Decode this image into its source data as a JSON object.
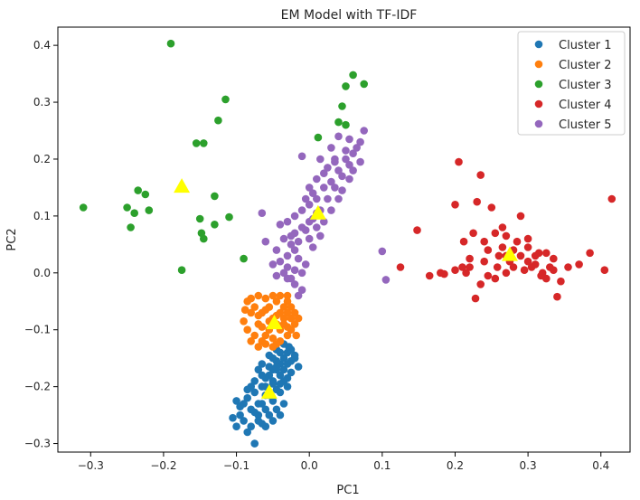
{
  "chart_data": {
    "type": "scatter",
    "title": "EM Model with TF-IDF",
    "xlabel": "PC1",
    "ylabel": "PC2",
    "xlim": [
      -0.345,
      0.44
    ],
    "ylim": [
      -0.315,
      0.432
    ],
    "xticks": [
      -0.3,
      -0.2,
      -0.1,
      0.0,
      0.1,
      0.2,
      0.3,
      0.4
    ],
    "xtick_labels": [
      "−0.3",
      "−0.2",
      "−0.1",
      "0.0",
      "0.1",
      "0.2",
      "0.3",
      "0.4"
    ],
    "yticks": [
      -0.3,
      -0.2,
      -0.1,
      0.0,
      0.1,
      0.2,
      0.3,
      0.4
    ],
    "ytick_labels": [
      "−0.3",
      "−0.2",
      "−0.1",
      "0.0",
      "0.1",
      "0.2",
      "0.3",
      "0.4"
    ],
    "legend": "top-right",
    "grid": false,
    "series": [
      {
        "name": "Cluster 1",
        "color": "#1f77b4",
        "points": [
          [
            -0.055,
            -0.215
          ],
          [
            -0.06,
            -0.2
          ],
          [
            -0.05,
            -0.19
          ],
          [
            -0.045,
            -0.17
          ],
          [
            -0.04,
            -0.16
          ],
          [
            -0.035,
            -0.15
          ],
          [
            -0.03,
            -0.14
          ],
          [
            -0.025,
            -0.135
          ],
          [
            -0.065,
            -0.23
          ],
          [
            -0.07,
            -0.25
          ],
          [
            -0.08,
            -0.24
          ],
          [
            -0.085,
            -0.22
          ],
          [
            -0.075,
            -0.21
          ],
          [
            -0.065,
            -0.2
          ],
          [
            -0.055,
            -0.18
          ],
          [
            -0.045,
            -0.155
          ],
          [
            -0.03,
            -0.16
          ],
          [
            -0.02,
            -0.15
          ],
          [
            -0.025,
            -0.175
          ],
          [
            -0.035,
            -0.19
          ],
          [
            -0.045,
            -0.205
          ],
          [
            -0.05,
            -0.225
          ],
          [
            -0.06,
            -0.24
          ],
          [
            -0.07,
            -0.26
          ],
          [
            -0.09,
            -0.26
          ],
          [
            -0.095,
            -0.25
          ],
          [
            -0.1,
            -0.27
          ],
          [
            -0.085,
            -0.28
          ],
          [
            -0.075,
            -0.3
          ],
          [
            -0.06,
            -0.27
          ],
          [
            -0.05,
            -0.26
          ],
          [
            -0.04,
            -0.25
          ],
          [
            -0.035,
            -0.23
          ],
          [
            -0.04,
            -0.21
          ],
          [
            -0.05,
            -0.195
          ],
          [
            -0.06,
            -0.185
          ],
          [
            -0.07,
            -0.17
          ],
          [
            -0.065,
            -0.16
          ],
          [
            -0.055,
            -0.145
          ],
          [
            -0.045,
            -0.135
          ],
          [
            -0.04,
            -0.14
          ],
          [
            -0.035,
            -0.125
          ],
          [
            -0.028,
            -0.13
          ],
          [
            -0.015,
            -0.165
          ],
          [
            -0.02,
            -0.145
          ],
          [
            -0.03,
            -0.2
          ],
          [
            -0.04,
            -0.18
          ],
          [
            -0.05,
            -0.17
          ],
          [
            -0.06,
            -0.215
          ],
          [
            -0.07,
            -0.23
          ],
          [
            -0.08,
            -0.2
          ],
          [
            -0.075,
            -0.19
          ],
          [
            -0.065,
            -0.18
          ],
          [
            -0.055,
            -0.165
          ],
          [
            -0.05,
            -0.15
          ],
          [
            -0.045,
            -0.24
          ],
          [
            -0.055,
            -0.25
          ],
          [
            -0.065,
            -0.265
          ],
          [
            -0.08,
            -0.27
          ],
          [
            -0.09,
            -0.23
          ],
          [
            -0.085,
            -0.205
          ],
          [
            -0.1,
            -0.225
          ],
          [
            -0.095,
            -0.235
          ],
          [
            -0.105,
            -0.255
          ],
          [
            -0.075,
            -0.245
          ],
          [
            -0.04,
            -0.195
          ],
          [
            -0.03,
            -0.185
          ],
          [
            -0.035,
            -0.17
          ],
          [
            -0.025,
            -0.155
          ],
          [
            -0.045,
            -0.165
          ]
        ]
      },
      {
        "name": "Cluster 2",
        "color": "#ff7f0e",
        "points": [
          [
            -0.045,
            -0.09
          ],
          [
            -0.05,
            -0.08
          ],
          [
            -0.04,
            -0.07
          ],
          [
            -0.035,
            -0.06
          ],
          [
            -0.03,
            -0.05
          ],
          [
            -0.055,
            -0.1
          ],
          [
            -0.06,
            -0.11
          ],
          [
            -0.065,
            -0.12
          ],
          [
            -0.07,
            -0.09
          ],
          [
            -0.08,
            -0.07
          ],
          [
            -0.085,
            -0.05
          ],
          [
            -0.075,
            -0.06
          ],
          [
            -0.065,
            -0.07
          ],
          [
            -0.055,
            -0.06
          ],
          [
            -0.045,
            -0.05
          ],
          [
            -0.03,
            -0.07
          ],
          [
            -0.025,
            -0.08
          ],
          [
            -0.02,
            -0.09
          ],
          [
            -0.025,
            -0.1
          ],
          [
            -0.03,
            -0.11
          ],
          [
            -0.04,
            -0.12
          ],
          [
            -0.045,
            -0.125
          ],
          [
            -0.05,
            -0.13
          ],
          [
            -0.06,
            -0.125
          ],
          [
            -0.07,
            -0.13
          ],
          [
            -0.08,
            -0.12
          ],
          [
            -0.085,
            -0.1
          ],
          [
            -0.09,
            -0.085
          ],
          [
            -0.088,
            -0.065
          ],
          [
            -0.08,
            -0.045
          ],
          [
            -0.07,
            -0.04
          ],
          [
            -0.06,
            -0.045
          ],
          [
            -0.05,
            -0.04
          ],
          [
            -0.04,
            -0.04
          ],
          [
            -0.03,
            -0.04
          ],
          [
            -0.025,
            -0.06
          ],
          [
            -0.02,
            -0.07
          ],
          [
            -0.015,
            -0.08
          ],
          [
            -0.018,
            -0.11
          ],
          [
            -0.035,
            -0.09
          ],
          [
            -0.045,
            -0.075
          ],
          [
            -0.055,
            -0.085
          ],
          [
            -0.065,
            -0.095
          ],
          [
            -0.075,
            -0.11
          ],
          [
            -0.06,
            -0.065
          ],
          [
            -0.05,
            -0.115
          ],
          [
            -0.04,
            -0.1
          ],
          [
            -0.035,
            -0.08
          ],
          [
            -0.03,
            -0.095
          ],
          [
            -0.07,
            -0.075
          ]
        ]
      },
      {
        "name": "Cluster 3",
        "color": "#2ca02c",
        "points": [
          [
            -0.19,
            0.403
          ],
          [
            -0.31,
            0.115
          ],
          [
            -0.25,
            0.115
          ],
          [
            -0.245,
            0.08
          ],
          [
            -0.24,
            0.105
          ],
          [
            -0.235,
            0.145
          ],
          [
            -0.225,
            0.138
          ],
          [
            -0.22,
            0.11
          ],
          [
            -0.175,
            0.005
          ],
          [
            -0.155,
            0.228
          ],
          [
            -0.145,
            0.228
          ],
          [
            -0.15,
            0.095
          ],
          [
            -0.148,
            0.07
          ],
          [
            -0.145,
            0.06
          ],
          [
            -0.13,
            0.135
          ],
          [
            -0.13,
            0.085
          ],
          [
            -0.125,
            0.268
          ],
          [
            -0.115,
            0.305
          ],
          [
            -0.11,
            0.098
          ],
          [
            -0.09,
            0.025
          ],
          [
            0.012,
            0.238
          ],
          [
            0.04,
            0.265
          ],
          [
            0.045,
            0.293
          ],
          [
            0.05,
            0.328
          ],
          [
            0.06,
            0.348
          ],
          [
            0.075,
            0.332
          ],
          [
            0.05,
            0.26
          ]
        ]
      },
      {
        "name": "Cluster 4",
        "color": "#d62728",
        "points": [
          [
            0.148,
            0.075
          ],
          [
            0.125,
            0.01
          ],
          [
            0.165,
            -0.005
          ],
          [
            0.18,
            0.0
          ],
          [
            0.185,
            -0.002
          ],
          [
            0.2,
            0.12
          ],
          [
            0.205,
            0.195
          ],
          [
            0.21,
            0.01
          ],
          [
            0.215,
            0.0
          ],
          [
            0.22,
            0.025
          ],
          [
            0.225,
            0.07
          ],
          [
            0.23,
            0.125
          ],
          [
            0.235,
            0.172
          ],
          [
            0.24,
            0.055
          ],
          [
            0.245,
            -0.005
          ],
          [
            0.25,
            0.115
          ],
          [
            0.255,
            0.07
          ],
          [
            0.26,
            0.03
          ],
          [
            0.265,
            0.08
          ],
          [
            0.27,
            0.065
          ],
          [
            0.275,
            0.02
          ],
          [
            0.28,
            0.01
          ],
          [
            0.285,
            0.055
          ],
          [
            0.29,
            0.1
          ],
          [
            0.295,
            0.005
          ],
          [
            0.3,
            0.02
          ],
          [
            0.305,
            0.01
          ],
          [
            0.31,
            0.015
          ],
          [
            0.315,
            0.035
          ],
          [
            0.32,
            0.0
          ],
          [
            0.325,
            -0.01
          ],
          [
            0.33,
            0.01
          ],
          [
            0.335,
            0.005
          ],
          [
            0.34,
            -0.042
          ],
          [
            0.345,
            -0.015
          ],
          [
            0.355,
            0.01
          ],
          [
            0.37,
            0.015
          ],
          [
            0.385,
            0.035
          ],
          [
            0.405,
            0.005
          ],
          [
            0.415,
            0.13
          ],
          [
            0.228,
            -0.045
          ],
          [
            0.235,
            -0.02
          ],
          [
            0.255,
            -0.01
          ],
          [
            0.27,
            0.0
          ],
          [
            0.265,
            0.045
          ],
          [
            0.29,
            0.03
          ],
          [
            0.3,
            0.045
          ],
          [
            0.31,
            0.03
          ],
          [
            0.325,
            0.035
          ],
          [
            0.24,
            0.02
          ],
          [
            0.22,
            0.01
          ],
          [
            0.2,
            0.005
          ],
          [
            0.212,
            0.055
          ],
          [
            0.28,
            0.04
          ],
          [
            0.3,
            0.06
          ],
          [
            0.318,
            -0.005
          ],
          [
            0.335,
            0.025
          ],
          [
            0.258,
            0.01
          ],
          [
            0.245,
            0.04
          ],
          [
            0.27,
            0.03
          ]
        ]
      },
      {
        "name": "Cluster 5",
        "color": "#9467bd",
        "points": [
          [
            0.01,
            0.105
          ],
          [
            0.0,
            0.09
          ],
          [
            -0.01,
            0.08
          ],
          [
            -0.02,
            0.07
          ],
          [
            -0.025,
            0.05
          ],
          [
            -0.03,
            0.03
          ],
          [
            -0.03,
            0.01
          ],
          [
            -0.025,
            -0.01
          ],
          [
            -0.02,
            -0.02
          ],
          [
            -0.01,
            -0.03
          ],
          [
            0.0,
            0.12
          ],
          [
            0.01,
            0.13
          ],
          [
            0.02,
            0.15
          ],
          [
            0.03,
            0.16
          ],
          [
            0.04,
            0.18
          ],
          [
            0.05,
            0.2
          ],
          [
            0.06,
            0.21
          ],
          [
            0.07,
            0.23
          ],
          [
            0.075,
            0.25
          ],
          [
            0.065,
            0.22
          ],
          [
            0.055,
            0.19
          ],
          [
            0.045,
            0.17
          ],
          [
            0.035,
            0.15
          ],
          [
            0.025,
            0.13
          ],
          [
            0.015,
            0.11
          ],
          [
            0.005,
            0.095
          ],
          [
            -0.005,
            0.075
          ],
          [
            -0.015,
            0.055
          ],
          [
            -0.02,
            0.04
          ],
          [
            -0.015,
            0.025
          ],
          [
            -0.005,
            0.015
          ],
          [
            0.005,
            0.045
          ],
          [
            0.015,
            0.065
          ],
          [
            0.02,
            0.09
          ],
          [
            0.03,
            0.11
          ],
          [
            0.04,
            0.13
          ],
          [
            0.045,
            0.145
          ],
          [
            0.055,
            0.165
          ],
          [
            0.06,
            0.18
          ],
          [
            0.025,
            0.185
          ],
          [
            0.015,
            0.2
          ],
          [
            0.03,
            0.22
          ],
          [
            0.04,
            0.24
          ],
          [
            0.05,
            0.215
          ],
          [
            0.035,
            0.195
          ],
          [
            -0.01,
            0.11
          ],
          [
            -0.02,
            0.1
          ],
          [
            -0.03,
            0.09
          ],
          [
            -0.04,
            0.085
          ],
          [
            -0.035,
            0.06
          ],
          [
            -0.045,
            0.04
          ],
          [
            -0.04,
            0.02
          ],
          [
            -0.035,
            0.0
          ],
          [
            -0.03,
            -0.01
          ],
          [
            -0.045,
            -0.005
          ],
          [
            -0.05,
            0.015
          ],
          [
            -0.06,
            0.055
          ],
          [
            -0.065,
            0.105
          ],
          [
            -0.01,
            0.205
          ],
          [
            0.0,
            0.15
          ],
          [
            0.01,
            0.165
          ],
          [
            0.02,
            0.175
          ],
          [
            0.0,
            0.06
          ],
          [
            0.01,
            0.08
          ],
          [
            -0.01,
            0.0
          ],
          [
            -0.015,
            -0.04
          ],
          [
            -0.02,
            0.005
          ],
          [
            -0.025,
            0.065
          ],
          [
            -0.005,
            0.13
          ],
          [
            0.005,
            0.14
          ],
          [
            0.1,
            0.038
          ],
          [
            0.105,
            -0.012
          ],
          [
            0.07,
            0.195
          ],
          [
            0.055,
            0.235
          ],
          [
            0.035,
            0.2
          ]
        ]
      }
    ],
    "centroids": {
      "color": "#ffff00",
      "marker": "triangle",
      "points": [
        [
          -0.055,
          -0.21
        ],
        [
          -0.048,
          -0.088
        ],
        [
          -0.175,
          0.152
        ],
        [
          0.275,
          0.032
        ],
        [
          0.012,
          0.105
        ]
      ]
    }
  }
}
